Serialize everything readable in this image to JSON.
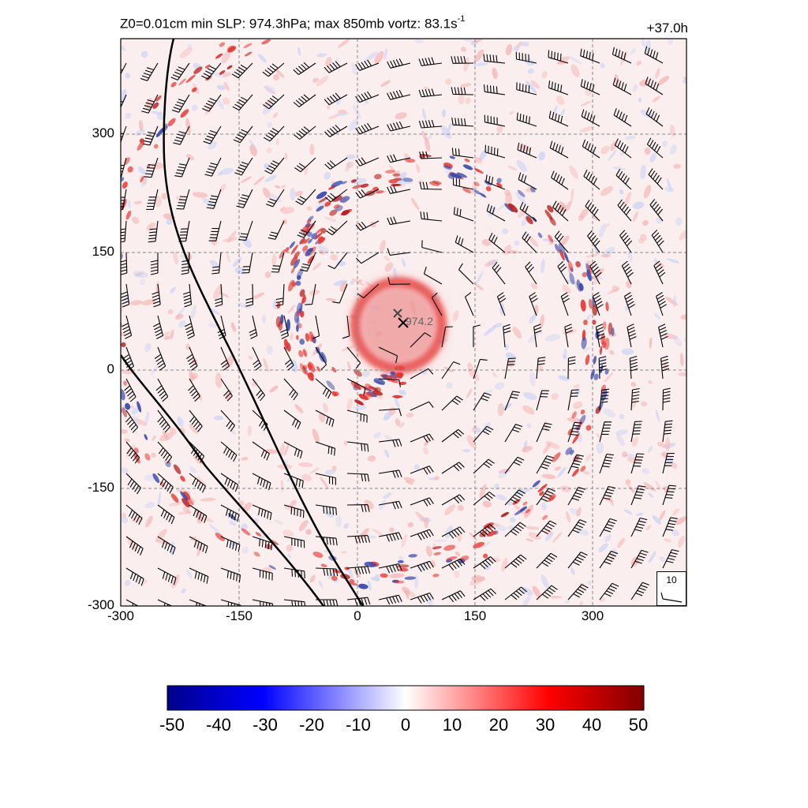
{
  "chart_data": {
    "type": "heatmap",
    "title_prefix": "Z0=0.01cm  min SLP: 974.3hPa; max 850mb vortz:  83.1s",
    "title_exponent": "-1",
    "time_label": "+37.0h",
    "x_ticks": [
      "-300",
      "-150",
      "0",
      "150",
      "300"
    ],
    "y_ticks": [
      "300",
      "150",
      "0",
      "-150",
      "-300"
    ],
    "xlim": [
      -300,
      420
    ],
    "ylim": [
      -300,
      420
    ],
    "grid": true,
    "center_marker_label": "974.2",
    "center_location": [
      60,
      60
    ],
    "reference_barb_label": "10",
    "colorbar": {
      "ticks": [
        "-50",
        "-40",
        "-30",
        "-20",
        "-10",
        "0",
        "10",
        "20",
        "30",
        "40",
        "50"
      ],
      "range": [
        -50,
        50
      ],
      "colors": [
        "#00008b",
        "#0000ff",
        "#ffffff",
        "#ff0000",
        "#800000"
      ]
    }
  }
}
